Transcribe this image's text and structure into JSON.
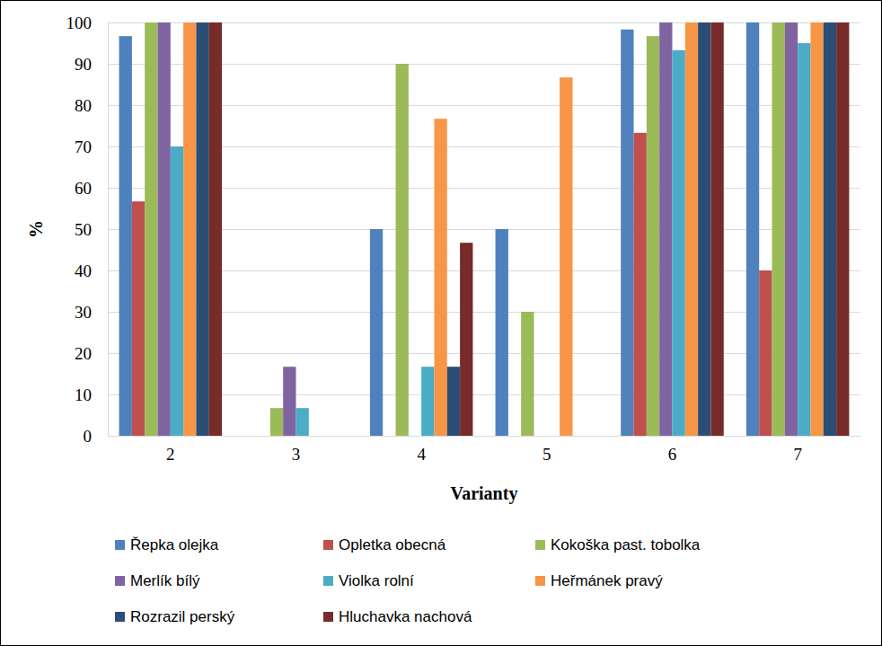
{
  "chart_data": {
    "type": "bar",
    "x_label": "Varianty",
    "y_label": "%",
    "categories": [
      "2",
      "3",
      "4",
      "5",
      "6",
      "7"
    ],
    "series": [
      {
        "name": "Řepka olejka",
        "color": "#4F81BD",
        "values": [
          96.7,
          0,
          50,
          50,
          98.3,
          100
        ]
      },
      {
        "name": "Opletka obecná",
        "color": "#C0504D",
        "values": [
          56.7,
          0,
          0,
          0,
          73.3,
          40
        ]
      },
      {
        "name": "Kokoška past. tobolka",
        "color": "#9BBB59",
        "values": [
          100,
          6.7,
          90,
          30,
          96.7,
          100
        ]
      },
      {
        "name": "Merlík bílý",
        "color": "#8064A2",
        "values": [
          100,
          16.7,
          0,
          0,
          100,
          100
        ]
      },
      {
        "name": "Violka rolní",
        "color": "#4BACC6",
        "values": [
          70,
          6.7,
          16.7,
          0,
          93.3,
          95
        ]
      },
      {
        "name": "Heřmánek pravý",
        "color": "#F79646",
        "values": [
          100,
          0,
          76.7,
          86.7,
          100,
          100
        ]
      },
      {
        "name": "Rozrazil perský",
        "color": "#2C4D75",
        "values": [
          100,
          0,
          16.7,
          0,
          100,
          100
        ]
      },
      {
        "name": "Hluchavka nachová",
        "color": "#772C2A",
        "values": [
          100,
          0,
          46.7,
          0,
          100,
          100
        ]
      }
    ],
    "ylim": [
      0,
      100
    ],
    "yticks": [
      0,
      10,
      20,
      30,
      40,
      50,
      60,
      70,
      80,
      90,
      100
    ],
    "grid": true,
    "legend": "bottom"
  }
}
